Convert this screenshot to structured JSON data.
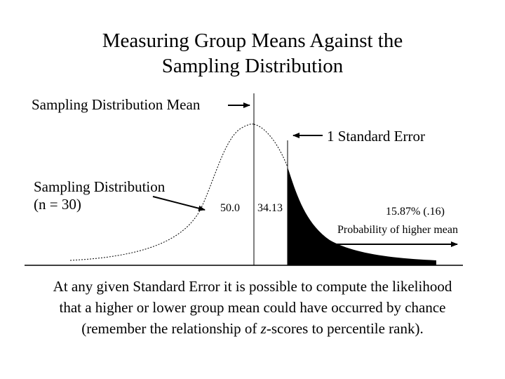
{
  "title_line1": "Measuring Group Means Against the",
  "title_line2": "Sampling Distribution",
  "labels": {
    "sampling_mean": "Sampling Distribution Mean",
    "standard_error": "1 Standard Error",
    "sampling_dist_line1": "Sampling Distribution",
    "sampling_dist_line2": "(n = 30)",
    "mean_value": "50.0",
    "se_percent": "34.13",
    "tail_percent": "15.87% (.16)",
    "tail_probability": "Probability of higher mean"
  },
  "caption": {
    "line1": "At any given Standard Error it is possible to compute the likelihood",
    "line2": "that a higher or lower group mean could have occurred by chance",
    "line3_before": "(remember the relationship of ",
    "line3_italic": "z",
    "line3_after": "-scores to percentile rank)."
  }
}
